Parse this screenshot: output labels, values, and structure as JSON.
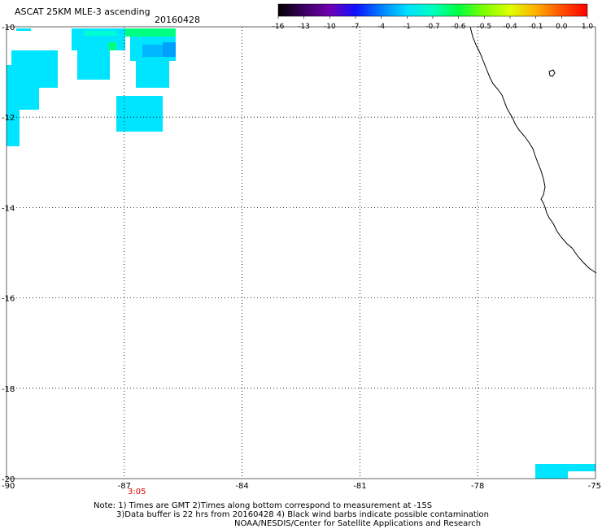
{
  "header": {
    "title": "ASCAT 25KM MLE-3 ascending",
    "date": "20160428"
  },
  "colorbar": {
    "labels": [
      "-16",
      "-13",
      "-10",
      "-7",
      "-4",
      "-1",
      "-0.7",
      "-0.6",
      "-0.5",
      "-0.4",
      "-0.1",
      "0.0",
      "1.0"
    ],
    "colors": [
      "#000000",
      "#3a0060",
      "#7000b0",
      "#1010ff",
      "#0080ff",
      "#00e0ff",
      "#00ffc0",
      "#00ff40",
      "#80ff00",
      "#e0ff00",
      "#ffb000",
      "#ff5000",
      "#ff0000"
    ]
  },
  "map": {
    "lon_range": [
      -90,
      -75
    ],
    "lat_range": [
      -20,
      -10
    ],
    "lon_ticks": [
      "-90",
      "-87",
      "-84",
      "-81",
      "-78",
      "-75"
    ],
    "lat_ticks": [
      "-10",
      "-12",
      "-14",
      "-16",
      "-18",
      "-20"
    ],
    "time_label": "3:05",
    "swath_color": "#00e5ff"
  },
  "notes": {
    "line1": "Note: 1) Times are GMT 2)Times along bottom correspond to measurement at -15S",
    "line2": "3)Data buffer is 22 hrs from 20160428 4) Black wind barbs indicate possible contamination",
    "line3": "NOAA/NESDIS/Center for Satellite Applications and Research"
  }
}
